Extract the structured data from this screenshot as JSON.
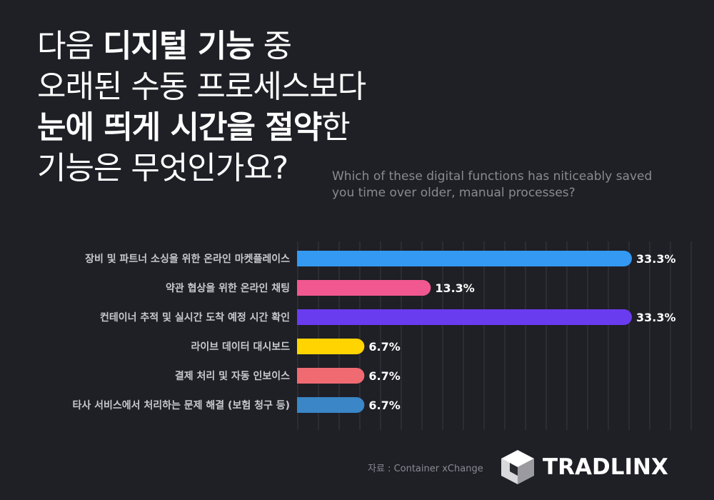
{
  "header": {
    "title_lines": [
      [
        {
          "t": "다음 ",
          "b": false
        },
        {
          "t": "디지털 기능",
          "b": true
        },
        {
          "t": " 중",
          "b": false
        }
      ],
      [
        {
          "t": "오래된 수동 프로세스보다",
          "b": false
        }
      ],
      [
        {
          "t": "눈에 띄게 시간을 절약",
          "b": true
        },
        {
          "t": "한",
          "b": false
        }
      ],
      [
        {
          "t": "기능은 무엇인가요?",
          "b": false
        }
      ]
    ],
    "subtitle": "Which of these digital functions has niticeably saved you time over older, manual processes?"
  },
  "chart_data": {
    "type": "bar",
    "orientation": "horizontal",
    "categories": [
      "장비 및 파트너 소싱을 위한 온라인 마켓플레이스",
      "약관 협상을 위한 온라인 채팅",
      "컨테이너 추적 및 실시간 도착 예정 시간 확인",
      "라이브 데이터 대시보드",
      "결제 처리 및 자동 인보이스",
      "타사 서비스에서 처리하는 문제 해결 (보험 청구 등)"
    ],
    "values": [
      33.3,
      13.3,
      33.3,
      6.7,
      6.7,
      6.7
    ],
    "value_labels": [
      "33.3%",
      "13.3%",
      "33.3%",
      "6.7%",
      "6.7%",
      "6.7%"
    ],
    "colors": [
      "#3399f3",
      "#f0588f",
      "#6a3cf0",
      "#ffd400",
      "#f06a72",
      "#3a86c6"
    ],
    "xlim": [
      0,
      40
    ],
    "grid": true
  },
  "footer": {
    "source": "자료 : Container xChange",
    "brand": "TRADLINX"
  }
}
